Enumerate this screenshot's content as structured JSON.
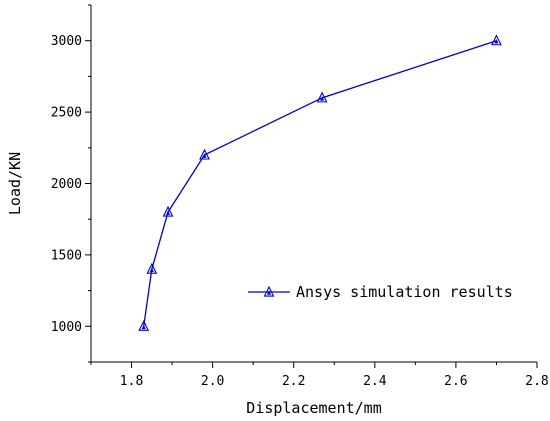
{
  "chart_data": {
    "type": "line",
    "title": "",
    "xlabel": "Displacement/mm",
    "ylabel": "Load/KN",
    "xlim": [
      1.7,
      2.8
    ],
    "ylim": [
      750,
      3250
    ],
    "xticks": [
      "1.8",
      "2.0",
      "2.2",
      "2.4",
      "2.6",
      "2.8"
    ],
    "yticks": [
      "1000",
      "1500",
      "2000",
      "2500",
      "3000"
    ],
    "grid": false,
    "legend_position": "right",
    "series": [
      {
        "name": "Ansys simulation results",
        "color": "#0000cc",
        "marker": "triangle-up",
        "x": [
          1.83,
          1.85,
          1.89,
          1.98,
          2.27,
          2.7
        ],
        "y": [
          1000,
          1400,
          1800,
          2200,
          2600,
          3000
        ]
      }
    ]
  }
}
